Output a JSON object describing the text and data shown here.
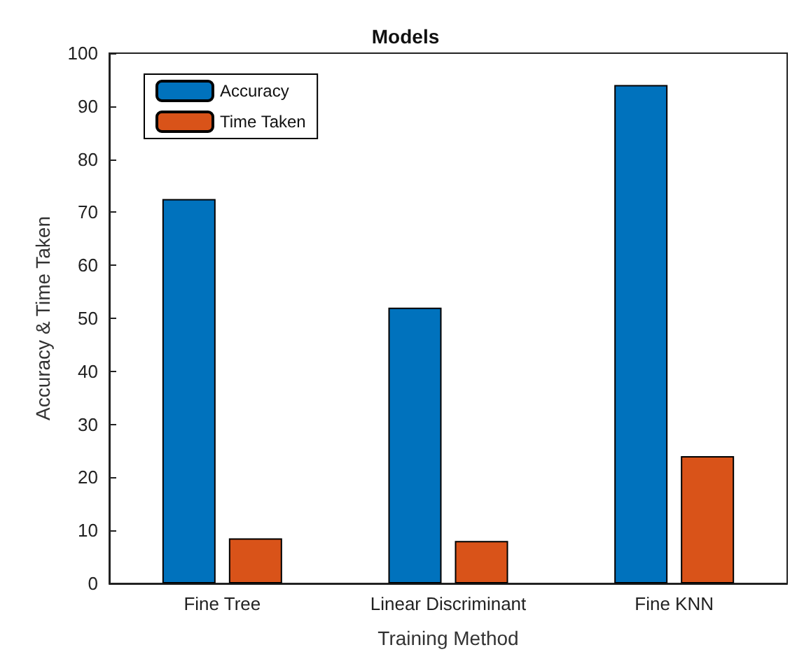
{
  "chart_data": {
    "type": "bar",
    "title": "Models",
    "xlabel": "Training Method",
    "ylabel": "Accuracy & Time Taken",
    "categories": [
      "Fine Tree",
      "Linear Discriminant",
      "Fine KNN"
    ],
    "series": [
      {
        "name": "Accuracy",
        "color": "#0072bd",
        "values": [
          72.5,
          52,
          94
        ]
      },
      {
        "name": "Time Taken",
        "color": "#d95319",
        "values": [
          8.5,
          8,
          24
        ]
      }
    ],
    "ylim": [
      0,
      100
    ],
    "yticks": [
      0,
      10,
      20,
      30,
      40,
      50,
      60,
      70,
      80,
      90,
      100
    ],
    "grid": false,
    "legend": "top left"
  }
}
